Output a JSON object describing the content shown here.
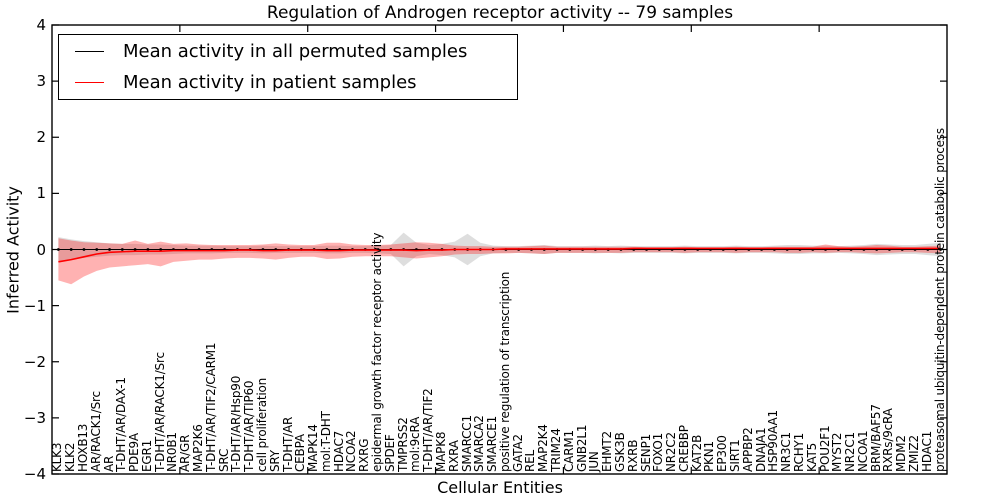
{
  "chart_data": {
    "type": "line",
    "title": "Regulation of Androgen receptor activity -- 79 samples",
    "xlabel": "Cellular Entities",
    "ylabel": "Inferred Activity",
    "ylim": [
      -4,
      4
    ],
    "ytick_labels": [
      "4",
      "3",
      "2",
      "1",
      "0",
      "−1",
      "−2",
      "−3",
      "−4"
    ],
    "ytick_values": [
      4,
      3,
      2,
      1,
      0,
      -1,
      -2,
      -3,
      -4
    ],
    "x_axis_units": 70,
    "x_major_ticks": [
      10,
      20,
      30,
      40,
      50,
      60
    ],
    "grid": false,
    "legend_position": "upper-left",
    "categories": [
      "KLK3",
      "KLK2",
      "HOXB13",
      "AR/RACK1/Src",
      "AR",
      "T-DHT/AR/DAX-1",
      "PDE9A",
      "EGR1",
      "T-DHT/AR/RACK1/Src",
      "NR0B1",
      "AR/GR",
      "MAP2K6",
      "T-DHT/AR/TIF2/CARM1",
      "SRC",
      "T-DHT/AR/Hsp90",
      "T-DHT/AR/TIP60",
      "cell proliferation",
      "SRY",
      "T-DHT/AR",
      "CEBPA",
      "MAPK14",
      "mol:T-DHT",
      "HDAC7",
      "NCOA2",
      "RXRG",
      "epidermal growth factor receptor activity",
      "SPDEF",
      "TMPRSS2",
      "mol:9cRA",
      "T-DHT/AR/TIF2",
      "MAPK8",
      "RXRA",
      "SMARCC1",
      "SMARCA2",
      "SMARCE1",
      "positive regulation of transcription",
      "GATA2",
      "REL",
      "MAP2K4",
      "TRIM24",
      "CARM1",
      "GNB2L1",
      "JUN",
      "EHMT2",
      "GSK3B",
      "RXRB",
      "SENP1",
      "FOXO1",
      "NR2C2",
      "CREBBP",
      "KAT2B",
      "PKN1",
      "EP300",
      "SIRT1",
      "APPBP2",
      "DNAJA1",
      "HSP90AA1",
      "NR3C1",
      "RCHY1",
      "KAT5",
      "POU2F1",
      "MYST2",
      "NR2C1",
      "NCOA1",
      "BRM/BAF57",
      "RXRs/9cRA",
      "MDM2",
      "ZMIZ2",
      "HDAC1",
      "proteasomal ubiquitin-dependent protein catabolic process"
    ],
    "series": [
      {
        "name": "Mean activity in all permuted samples",
        "color": "#000000",
        "band_color": "rgba(0,0,0,0.13)",
        "values": [
          0,
          0,
          0,
          0,
          0,
          0,
          0,
          0,
          0,
          0,
          0,
          0,
          0,
          0,
          0,
          0,
          0,
          0,
          0,
          0,
          0,
          0,
          0,
          0,
          0,
          0,
          0,
          0,
          0,
          0,
          0,
          0,
          0,
          0,
          0,
          0,
          0,
          0,
          0,
          0,
          0,
          0,
          0,
          0,
          0,
          0,
          0,
          0,
          0,
          0,
          0,
          0,
          0,
          0,
          0,
          0,
          0,
          0,
          0,
          0,
          0,
          0,
          0,
          0,
          0,
          0,
          0,
          0,
          0,
          0
        ],
        "band_half_width": [
          0.22,
          0.18,
          0.15,
          0.13,
          0.11,
          0.1,
          0.1,
          0.09,
          0.09,
          0.08,
          0.07,
          0.07,
          0.07,
          0.06,
          0.06,
          0.06,
          0.07,
          0.06,
          0.06,
          0.06,
          0.06,
          0.07,
          0.07,
          0.06,
          0.06,
          0.07,
          0.08,
          0.3,
          0.12,
          0.08,
          0.1,
          0.14,
          0.28,
          0.12,
          0.07,
          0.06,
          0.06,
          0.07,
          0.08,
          0.06,
          0.06,
          0.06,
          0.07,
          0.06,
          0.07,
          0.06,
          0.06,
          0.06,
          0.06,
          0.07,
          0.06,
          0.06,
          0.06,
          0.07,
          0.06,
          0.06,
          0.07,
          0.08,
          0.08,
          0.07,
          0.07,
          0.06,
          0.07,
          0.08,
          0.1,
          0.09,
          0.08,
          0.08,
          0.1,
          0.12
        ]
      },
      {
        "name": "Mean activity in patient samples",
        "color": "#ff0000",
        "band_color": "rgba(255,0,0,0.30)",
        "values": [
          -0.22,
          -0.18,
          -0.13,
          -0.08,
          -0.05,
          -0.04,
          -0.03,
          -0.03,
          -0.03,
          -0.02,
          -0.02,
          -0.02,
          -0.02,
          -0.02,
          -0.01,
          -0.01,
          -0.02,
          -0.02,
          -0.01,
          -0.01,
          -0.01,
          -0.02,
          -0.02,
          -0.01,
          -0.01,
          -0.01,
          -0.01,
          -0.01,
          -0.02,
          -0.01,
          -0.01,
          0.0,
          0.0,
          0.0,
          0.0,
          0.01,
          0.01,
          0.01,
          0.01,
          0.01,
          0.01,
          0.01,
          0.01,
          0.01,
          0.01,
          0.02,
          0.02,
          0.02,
          0.02,
          0.02,
          0.02,
          0.02,
          0.02,
          0.02,
          0.02,
          0.02,
          0.02,
          0.02,
          0.02,
          0.02,
          0.02,
          0.02,
          0.02,
          0.02,
          0.02,
          0.02,
          0.02,
          0.02,
          0.02,
          0.02
        ],
        "band_upper": [
          0.2,
          0.16,
          0.13,
          0.12,
          0.11,
          0.1,
          0.16,
          0.1,
          0.14,
          0.1,
          0.11,
          0.09,
          0.08,
          0.08,
          0.08,
          0.08,
          0.09,
          0.11,
          0.09,
          0.08,
          0.08,
          0.12,
          0.12,
          0.09,
          0.08,
          0.08,
          0.09,
          0.11,
          0.13,
          0.12,
          0.1,
          0.07,
          0.06,
          0.06,
          0.05,
          0.05,
          0.05,
          0.06,
          0.07,
          0.05,
          0.05,
          0.05,
          0.05,
          0.05,
          0.05,
          0.05,
          0.04,
          0.04,
          0.04,
          0.05,
          0.04,
          0.04,
          0.04,
          0.05,
          0.04,
          0.04,
          0.05,
          0.05,
          0.05,
          0.05,
          0.09,
          0.06,
          0.05,
          0.06,
          0.08,
          0.07,
          0.05,
          0.05,
          0.06,
          0.07
        ],
        "band_lower": [
          -0.55,
          -0.62,
          -0.48,
          -0.38,
          -0.32,
          -0.3,
          -0.28,
          -0.26,
          -0.3,
          -0.22,
          -0.2,
          -0.18,
          -0.18,
          -0.16,
          -0.15,
          -0.15,
          -0.16,
          -0.18,
          -0.15,
          -0.13,
          -0.13,
          -0.17,
          -0.16,
          -0.13,
          -0.12,
          -0.12,
          -0.12,
          -0.14,
          -0.16,
          -0.14,
          -0.12,
          -0.09,
          -0.08,
          -0.08,
          -0.07,
          -0.07,
          -0.06,
          -0.07,
          -0.08,
          -0.06,
          -0.06,
          -0.06,
          -0.06,
          -0.06,
          -0.06,
          -0.05,
          -0.05,
          -0.05,
          -0.05,
          -0.06,
          -0.05,
          -0.05,
          -0.05,
          -0.06,
          -0.05,
          -0.05,
          -0.05,
          -0.06,
          -0.06,
          -0.05,
          -0.06,
          -0.05,
          -0.05,
          -0.06,
          -0.07,
          -0.06,
          -0.05,
          -0.05,
          -0.06,
          -0.07
        ]
      }
    ]
  }
}
